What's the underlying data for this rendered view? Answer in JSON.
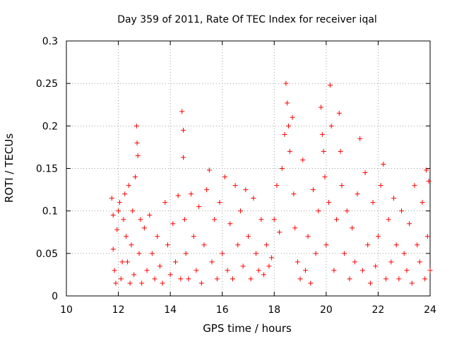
{
  "chart_data": {
    "type": "scatter",
    "title": "Day 359 of 2011, Rate Of TEC Index for receiver iqal",
    "xlabel": "GPS time / hours",
    "ylabel": "ROTI / TECUs",
    "xlim": [
      10,
      24
    ],
    "ylim": [
      0,
      0.3
    ],
    "x_ticks": [
      "10",
      "12",
      "14",
      "16",
      "18",
      "20",
      "22",
      "24"
    ],
    "y_ticks": [
      "0",
      "0.05",
      "0.1",
      "0.15",
      "0.2",
      "0.25",
      "0.3"
    ],
    "grid": true,
    "marker": "plus",
    "color": "#ff0000",
    "series": [
      {
        "points": [
          [
            11.75,
            0.115
          ],
          [
            11.8,
            0.095
          ],
          [
            11.8,
            0.055
          ],
          [
            11.85,
            0.03
          ],
          [
            11.9,
            0.015
          ],
          [
            11.95,
            0.078
          ],
          [
            12.0,
            0.1
          ],
          [
            12.05,
            0.11
          ],
          [
            12.1,
            0.02
          ],
          [
            12.15,
            0.04
          ],
          [
            12.2,
            0.09
          ],
          [
            12.25,
            0.12
          ],
          [
            12.3,
            0.07
          ],
          [
            12.35,
            0.04
          ],
          [
            12.4,
            0.13
          ],
          [
            12.45,
            0.015
          ],
          [
            12.5,
            0.06
          ],
          [
            12.55,
            0.1
          ],
          [
            12.6,
            0.025
          ],
          [
            12.65,
            0.14
          ],
          [
            12.7,
            0.2
          ],
          [
            12.72,
            0.18
          ],
          [
            12.75,
            0.165
          ],
          [
            12.8,
            0.05
          ],
          [
            12.85,
            0.09
          ],
          [
            12.9,
            0.015
          ],
          [
            13.0,
            0.08
          ],
          [
            13.1,
            0.03
          ],
          [
            13.2,
            0.095
          ],
          [
            13.3,
            0.05
          ],
          [
            13.4,
            0.02
          ],
          [
            13.5,
            0.07
          ],
          [
            13.6,
            0.035
          ],
          [
            13.7,
            0.015
          ],
          [
            13.8,
            0.11
          ],
          [
            13.9,
            0.06
          ],
          [
            14.0,
            0.025
          ],
          [
            14.1,
            0.085
          ],
          [
            14.2,
            0.04
          ],
          [
            14.3,
            0.118
          ],
          [
            14.4,
            0.02
          ],
          [
            14.45,
            0.217
          ],
          [
            14.5,
            0.195
          ],
          [
            14.5,
            0.163
          ],
          [
            14.55,
            0.09
          ],
          [
            14.6,
            0.05
          ],
          [
            14.7,
            0.02
          ],
          [
            14.8,
            0.12
          ],
          [
            14.9,
            0.07
          ],
          [
            15.0,
            0.03
          ],
          [
            15.1,
            0.105
          ],
          [
            15.2,
            0.015
          ],
          [
            15.3,
            0.06
          ],
          [
            15.4,
            0.125
          ],
          [
            15.5,
            0.148
          ],
          [
            15.6,
            0.04
          ],
          [
            15.7,
            0.09
          ],
          [
            15.8,
            0.02
          ],
          [
            15.9,
            0.11
          ],
          [
            16.0,
            0.05
          ],
          [
            16.1,
            0.14
          ],
          [
            16.2,
            0.03
          ],
          [
            16.3,
            0.085
          ],
          [
            16.4,
            0.02
          ],
          [
            16.5,
            0.13
          ],
          [
            16.6,
            0.06
          ],
          [
            16.7,
            0.1
          ],
          [
            16.8,
            0.035
          ],
          [
            16.9,
            0.125
          ],
          [
            17.0,
            0.07
          ],
          [
            17.1,
            0.02
          ],
          [
            17.2,
            0.115
          ],
          [
            17.3,
            0.05
          ],
          [
            17.4,
            0.03
          ],
          [
            17.5,
            0.09
          ],
          [
            17.6,
            0.025
          ],
          [
            17.7,
            0.06
          ],
          [
            17.8,
            0.035
          ],
          [
            17.9,
            0.045
          ],
          [
            18.0,
            0.09
          ],
          [
            18.1,
            0.13
          ],
          [
            18.2,
            0.075
          ],
          [
            18.3,
            0.15
          ],
          [
            18.4,
            0.19
          ],
          [
            18.45,
            0.25
          ],
          [
            18.5,
            0.227
          ],
          [
            18.55,
            0.2
          ],
          [
            18.6,
            0.17
          ],
          [
            18.7,
            0.21
          ],
          [
            18.75,
            0.12
          ],
          [
            18.8,
            0.08
          ],
          [
            18.9,
            0.04
          ],
          [
            19.0,
            0.02
          ],
          [
            19.1,
            0.16
          ],
          [
            19.2,
            0.03
          ],
          [
            19.3,
            0.07
          ],
          [
            19.4,
            0.015
          ],
          [
            19.5,
            0.125
          ],
          [
            19.6,
            0.05
          ],
          [
            19.7,
            0.1
          ],
          [
            19.8,
            0.222
          ],
          [
            19.85,
            0.19
          ],
          [
            19.9,
            0.17
          ],
          [
            19.95,
            0.14
          ],
          [
            20.0,
            0.06
          ],
          [
            20.1,
            0.11
          ],
          [
            20.15,
            0.248
          ],
          [
            20.2,
            0.2
          ],
          [
            20.3,
            0.03
          ],
          [
            20.4,
            0.09
          ],
          [
            20.5,
            0.215
          ],
          [
            20.55,
            0.17
          ],
          [
            20.6,
            0.13
          ],
          [
            20.7,
            0.05
          ],
          [
            20.8,
            0.1
          ],
          [
            20.9,
            0.02
          ],
          [
            21.0,
            0.08
          ],
          [
            21.1,
            0.04
          ],
          [
            21.2,
            0.12
          ],
          [
            21.3,
            0.185
          ],
          [
            21.4,
            0.03
          ],
          [
            21.5,
            0.145
          ],
          [
            21.6,
            0.06
          ],
          [
            21.7,
            0.015
          ],
          [
            21.8,
            0.11
          ],
          [
            21.9,
            0.035
          ],
          [
            22.0,
            0.07
          ],
          [
            22.1,
            0.13
          ],
          [
            22.2,
            0.155
          ],
          [
            22.3,
            0.02
          ],
          [
            22.4,
            0.09
          ],
          [
            22.5,
            0.04
          ],
          [
            22.6,
            0.115
          ],
          [
            22.7,
            0.06
          ],
          [
            22.8,
            0.02
          ],
          [
            22.9,
            0.1
          ],
          [
            23.0,
            0.05
          ],
          [
            23.1,
            0.03
          ],
          [
            23.2,
            0.085
          ],
          [
            23.3,
            0.015
          ],
          [
            23.4,
            0.13
          ],
          [
            23.5,
            0.06
          ],
          [
            23.6,
            0.04
          ],
          [
            23.7,
            0.11
          ],
          [
            23.8,
            0.02
          ],
          [
            23.85,
            0.148
          ],
          [
            23.9,
            0.07
          ],
          [
            23.95,
            0.135
          ],
          [
            24.0,
            0.03
          ]
        ]
      }
    ]
  }
}
